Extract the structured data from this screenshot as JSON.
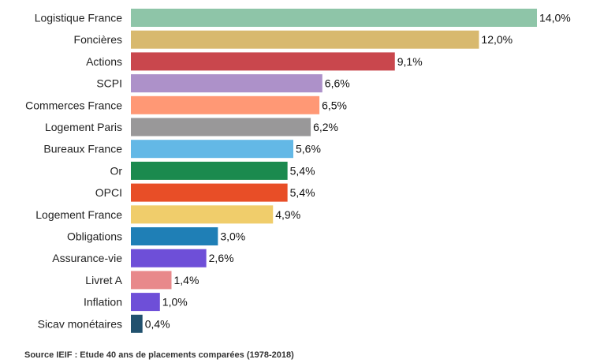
{
  "chart_data": {
    "type": "bar",
    "orientation": "horizontal",
    "title": "",
    "xlabel": "",
    "ylabel": "",
    "xlim": [
      0,
      14
    ],
    "grid": false,
    "legend": "none",
    "value_suffix": "%",
    "decimal_separator": ",",
    "categories": [
      "Logistique France",
      "Foncières",
      "Actions",
      "SCPI",
      "Commerces France",
      "Logement Paris",
      "Bureaux France",
      "Or",
      "OPCI",
      "Logement France",
      "Obligations",
      "Assurance-vie",
      "Livret A",
      "Inflation",
      "Sicav monétaires"
    ],
    "values": [
      14.0,
      12.0,
      9.1,
      6.6,
      6.5,
      6.2,
      5.6,
      5.4,
      5.4,
      4.9,
      3.0,
      2.6,
      1.4,
      1.0,
      0.4
    ],
    "value_labels": [
      "14,0%",
      "12,0%",
      "9,1%",
      "6,6%",
      "6,5%",
      "6,2%",
      "5,6%",
      "5,4%",
      "5,4%",
      "4,9%",
      "3,0%",
      "2,6%",
      "1,4%",
      "1,0%",
      "0,4%"
    ],
    "colors": [
      "#8ec5a8",
      "#d8b96e",
      "#c9474d",
      "#ad91c9",
      "#ff9875",
      "#999899",
      "#63b8e6",
      "#1b8a4e",
      "#e84e27",
      "#f0cd6b",
      "#1f7fb6",
      "#6e4fd8",
      "#e8898b",
      "#6e4fd8",
      "#21516e"
    ]
  },
  "footer": {
    "source": "Source IEIF : Etude 40 ans de placements comparées (1978-2018)"
  }
}
